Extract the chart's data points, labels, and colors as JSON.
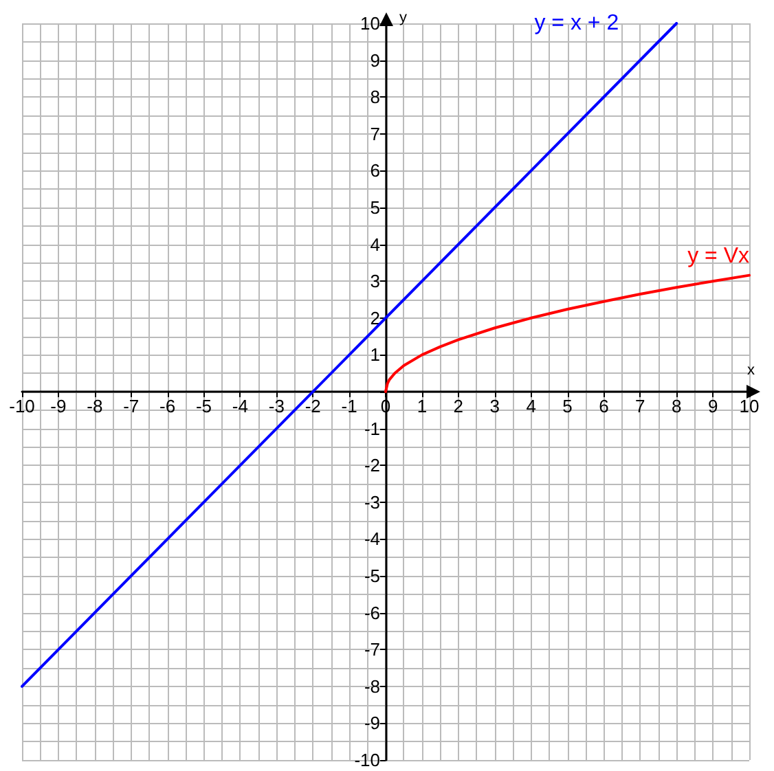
{
  "chart_data": {
    "type": "line",
    "xlabel": "x",
    "ylabel": "y",
    "xlim": [
      -10,
      10
    ],
    "ylim": [
      -10,
      10
    ],
    "xticks": [
      -10,
      -9,
      -8,
      -7,
      -6,
      -5,
      -4,
      -3,
      -2,
      -1,
      0,
      1,
      2,
      3,
      4,
      5,
      6,
      7,
      8,
      9,
      10
    ],
    "yticks": [
      -10,
      -9,
      -8,
      -7,
      -6,
      -5,
      -4,
      -3,
      -2,
      -1,
      {
        "value": 0,
        "label": null
      },
      1,
      2,
      3,
      4,
      5,
      6,
      7,
      8,
      9,
      10
    ],
    "grid": true,
    "marker": "none",
    "line_style": "solid",
    "legend": false,
    "series": [
      {
        "name": "y = x + 2",
        "color": "#0000ff",
        "x": [
          -10,
          8
        ],
        "values": [
          -8,
          10
        ]
      },
      {
        "name": "y = Vx",
        "color": "#ff0000",
        "x": [
          0,
          0.05,
          0.1,
          0.25,
          0.5,
          1,
          1.5,
          2,
          3,
          4,
          5,
          6,
          7,
          8,
          9,
          10
        ],
        "values": [
          0,
          0.22,
          0.32,
          0.5,
          0.71,
          1,
          1.22,
          1.41,
          1.73,
          2,
          2.24,
          2.45,
          2.65,
          2.83,
          3,
          3.16
        ]
      }
    ]
  }
}
